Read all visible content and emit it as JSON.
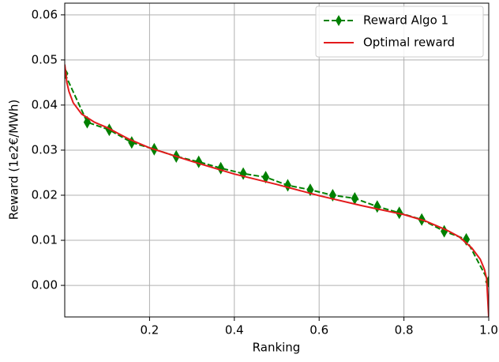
{
  "chart_data": {
    "type": "line",
    "x_label": "Ranking",
    "y_label": "Reward (1e2€/MWh)",
    "xlim": [
      0,
      1
    ],
    "ylim": [
      -0.007,
      0.0626
    ],
    "xticks": [
      0.2,
      0.4,
      0.6,
      0.8,
      {
        "value": 1,
        "label": "1.0"
      }
    ],
    "yticks": [
      {
        "value": 0,
        "label": "0.00"
      },
      {
        "value": 0.01,
        "label": "0.01"
      },
      {
        "value": 0.02,
        "label": "0.02"
      },
      {
        "value": 0.03,
        "label": "0.03"
      },
      {
        "value": 0.04,
        "label": "0.04"
      },
      {
        "value": 0.05,
        "label": "0.05"
      },
      {
        "value": 0.06,
        "label": "0.06"
      }
    ],
    "grid": true,
    "legend": "upper right",
    "series": [
      {
        "name": "Reward Algo 1",
        "color": "#008000",
        "linestyle": "dashed",
        "marker": "diamond",
        "x": [
          0,
          0.053,
          0.105,
          0.158,
          0.211,
          0.263,
          0.316,
          0.368,
          0.421,
          0.474,
          0.526,
          0.579,
          0.632,
          0.684,
          0.737,
          0.789,
          0.842,
          0.895,
          0.947,
          1.0
        ],
        "values": [
          0.047,
          0.0362,
          0.0345,
          0.0317,
          0.0302,
          0.0286,
          0.0274,
          0.026,
          0.0248,
          0.024,
          0.0222,
          0.0212,
          0.02,
          0.0193,
          0.0175,
          0.0161,
          0.0146,
          0.012,
          0.0102,
          0.0008
        ]
      },
      {
        "name": "Optimal reward",
        "color": "#e31a1c",
        "linestyle": "solid",
        "x": [
          0,
          0.005,
          0.01,
          0.02,
          0.04,
          0.07,
          0.1,
          0.15,
          0.2,
          0.3,
          0.4,
          0.5,
          0.6,
          0.7,
          0.8,
          0.85,
          0.9,
          0.93,
          0.96,
          0.98,
          0.99,
          0.995,
          1.0
        ],
        "values": [
          0.049,
          0.045,
          0.043,
          0.0405,
          0.038,
          0.0362,
          0.035,
          0.0325,
          0.0305,
          0.0275,
          0.0247,
          0.0224,
          0.0199,
          0.0177,
          0.0157,
          0.0143,
          0.0123,
          0.0108,
          0.0083,
          0.0058,
          0.0035,
          0.0015,
          -0.007
        ]
      }
    ]
  }
}
